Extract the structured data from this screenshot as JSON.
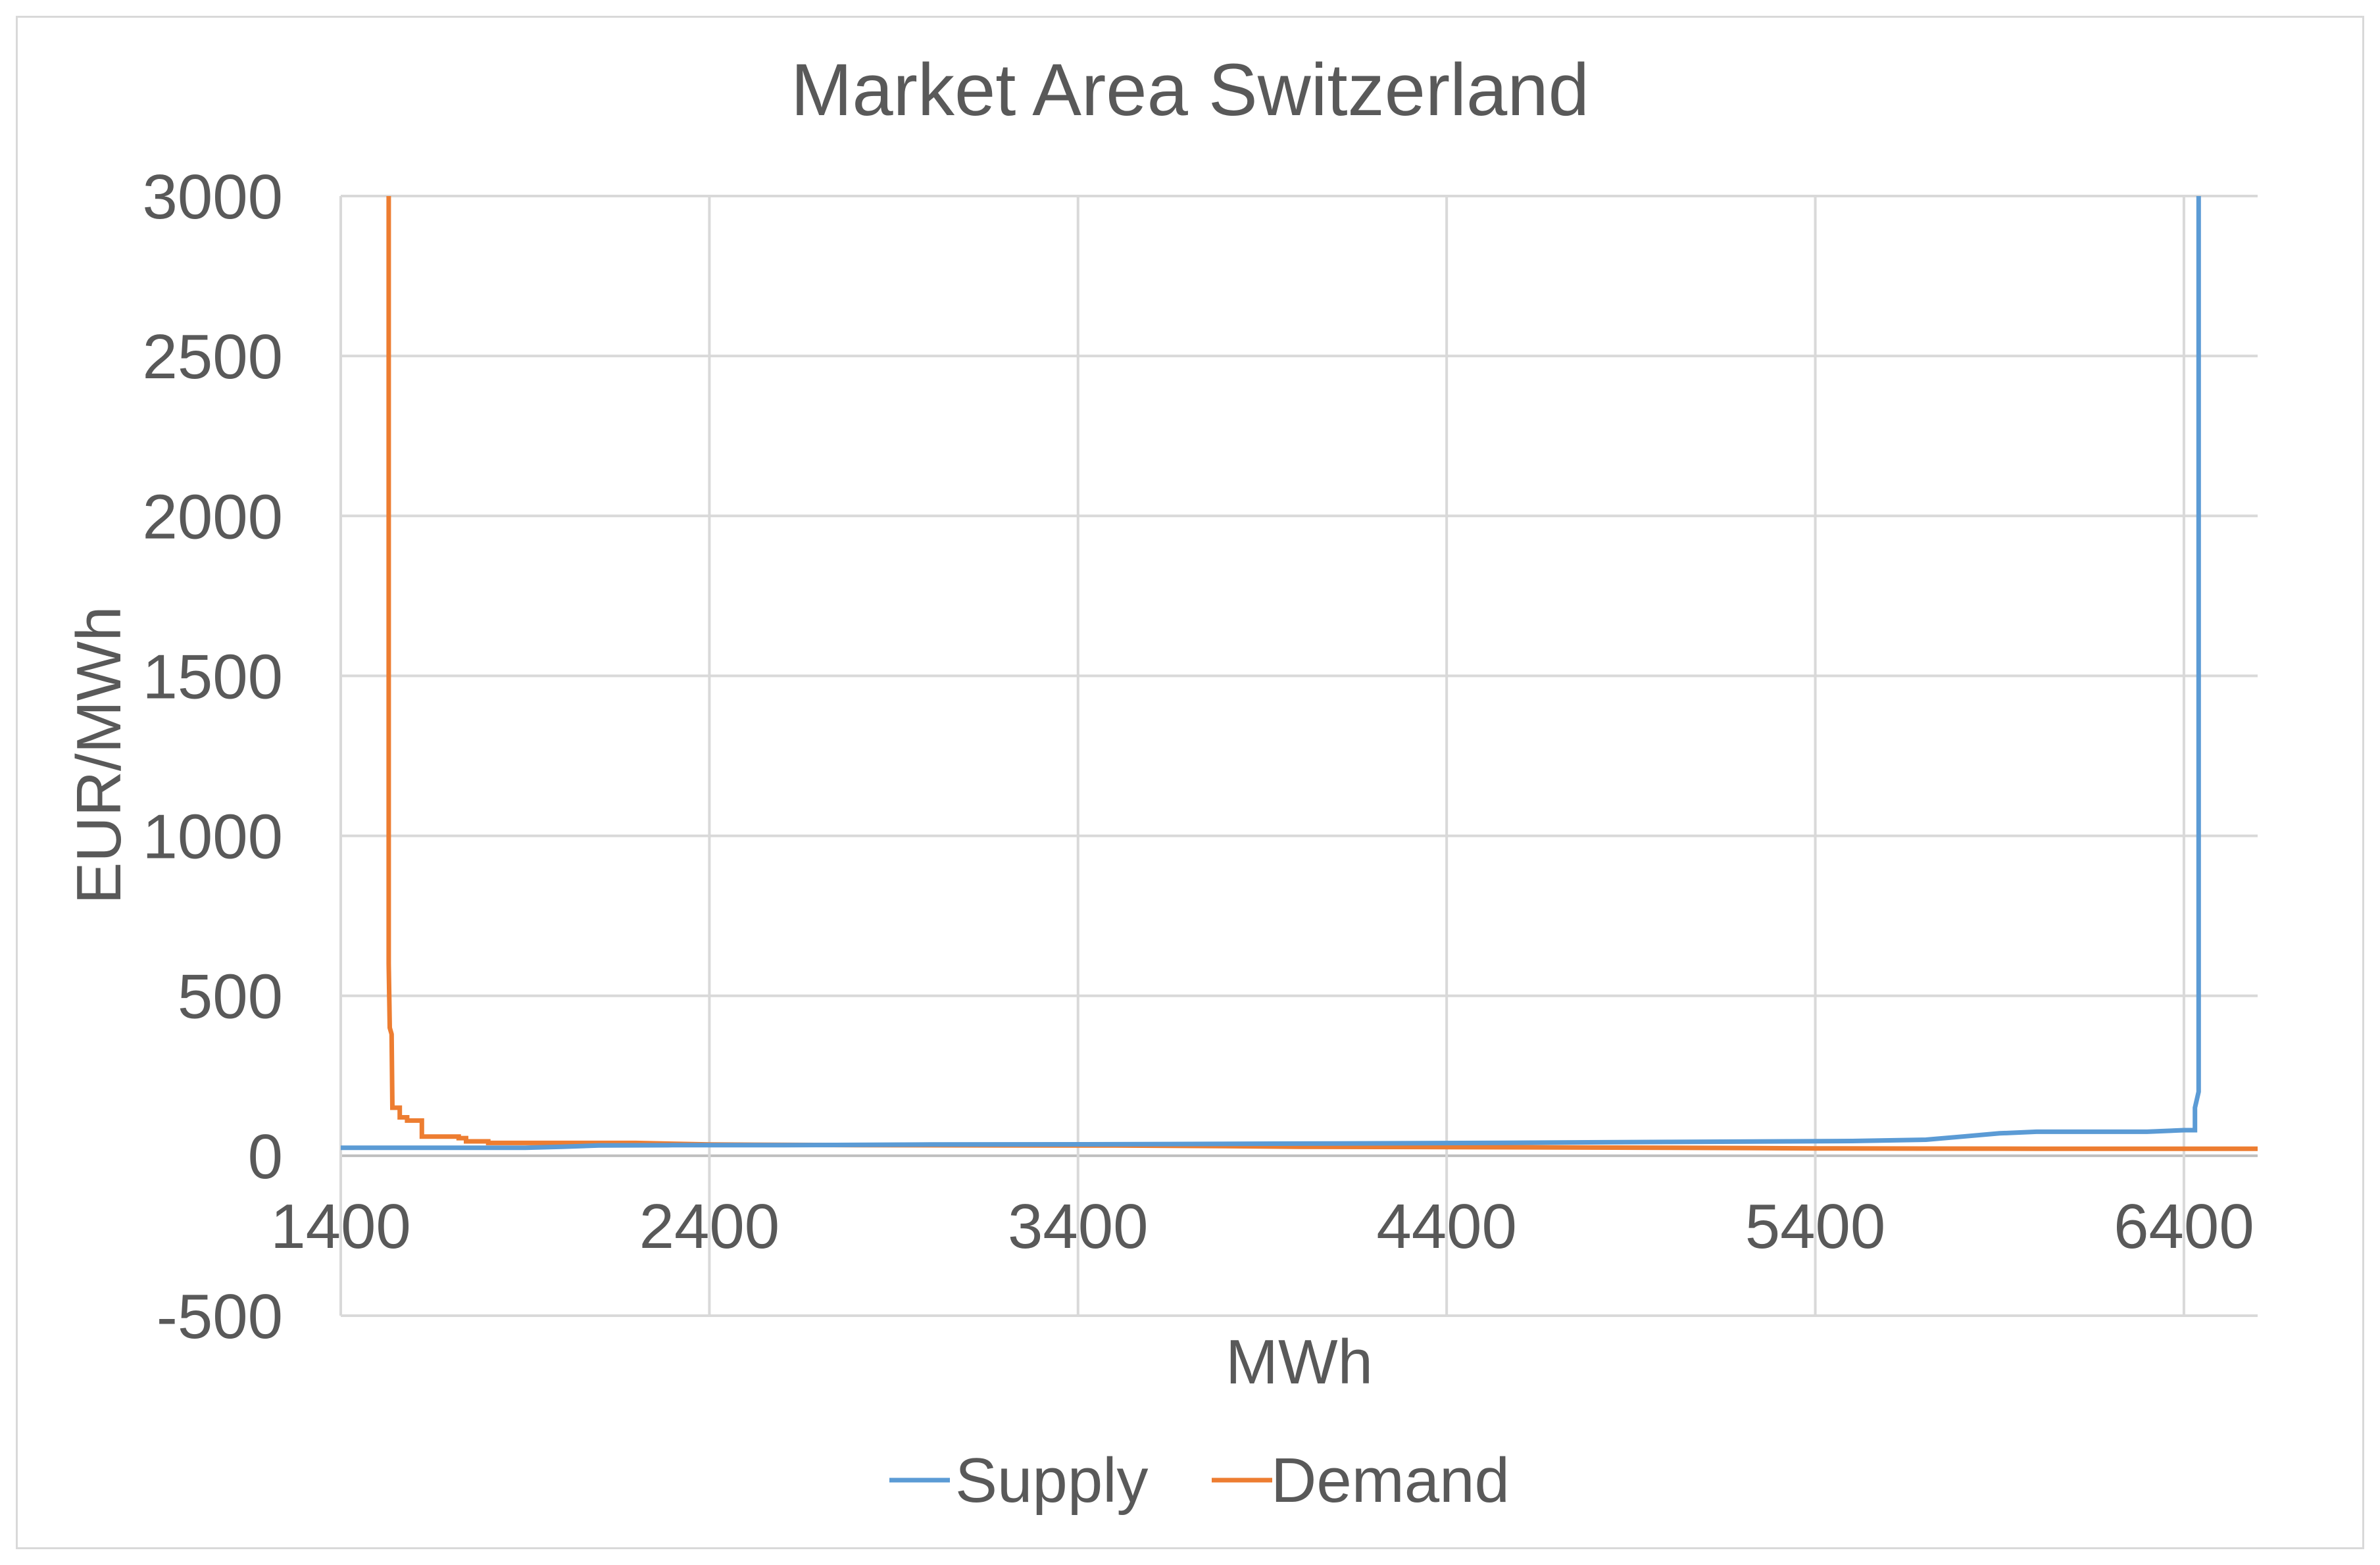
{
  "chart_data": {
    "type": "line",
    "title": "Market Area Switzerland",
    "xlabel": "MWh",
    "ylabel": "EUR/MWh",
    "xlim": [
      1400,
      6600
    ],
    "ylim": [
      -500,
      3000
    ],
    "x_ticks": [
      "1400",
      "2400",
      "3400",
      "4400",
      "5400",
      "6400"
    ],
    "y_ticks": [
      "3000",
      "2500",
      "2000",
      "1500",
      "1000",
      "500",
      "0",
      "-500"
    ],
    "grid": true,
    "legend_position": "bottom",
    "series": [
      {
        "name": "Supply",
        "color": "#5b9bd5",
        "points": [
          [
            1400,
            25
          ],
          [
            1900,
            25
          ],
          [
            2000,
            28
          ],
          [
            2100,
            32
          ],
          [
            2300,
            33
          ],
          [
            2600,
            33
          ],
          [
            3000,
            35
          ],
          [
            3500,
            36
          ],
          [
            4000,
            38
          ],
          [
            4500,
            40
          ],
          [
            5000,
            43
          ],
          [
            5500,
            46
          ],
          [
            5700,
            50
          ],
          [
            5800,
            60
          ],
          [
            5900,
            70
          ],
          [
            6000,
            75
          ],
          [
            6300,
            75
          ],
          [
            6400,
            80
          ],
          [
            6430,
            80
          ],
          [
            6430,
            150
          ],
          [
            6440,
            200
          ],
          [
            6440,
            3000
          ]
        ]
      },
      {
        "name": "Demand",
        "color": "#ed7d31",
        "points": [
          [
            1530,
            3000
          ],
          [
            1530,
            600
          ],
          [
            1533,
            400
          ],
          [
            1538,
            380
          ],
          [
            1540,
            150
          ],
          [
            1560,
            150
          ],
          [
            1560,
            120
          ],
          [
            1580,
            120
          ],
          [
            1580,
            110
          ],
          [
            1620,
            110
          ],
          [
            1620,
            60
          ],
          [
            1720,
            60
          ],
          [
            1720,
            55
          ],
          [
            1740,
            55
          ],
          [
            1740,
            45
          ],
          [
            1800,
            45
          ],
          [
            1800,
            40
          ],
          [
            2200,
            40
          ],
          [
            2400,
            35
          ],
          [
            2800,
            33
          ],
          [
            3500,
            32
          ],
          [
            3800,
            30
          ],
          [
            4000,
            28
          ],
          [
            4400,
            27
          ],
          [
            5000,
            25
          ],
          [
            5400,
            23
          ],
          [
            6000,
            22
          ],
          [
            6600,
            22
          ]
        ]
      }
    ]
  }
}
